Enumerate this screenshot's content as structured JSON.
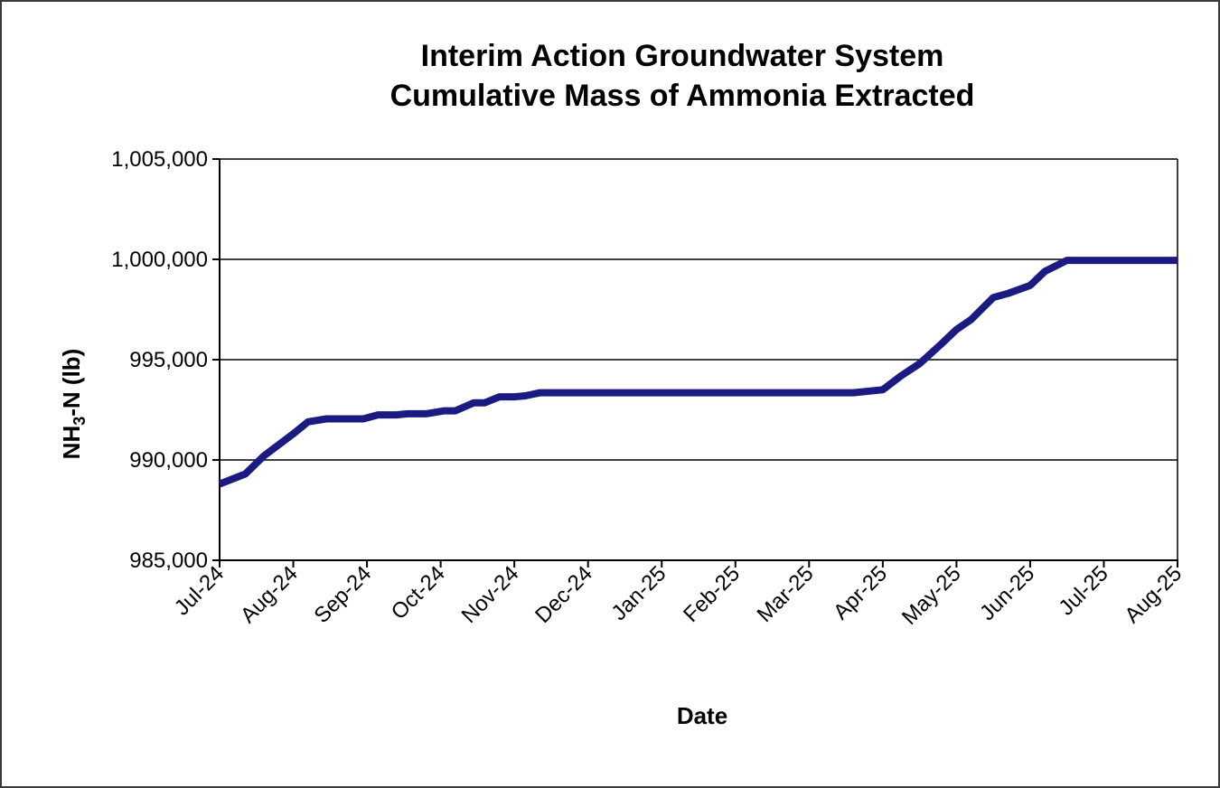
{
  "chart_data": {
    "type": "line",
    "title": "Interim Action Groundwater System",
    "subtitle": "Cumulative Mass of Ammonia Extracted",
    "xlabel": "Date",
    "ylabel_main": "NH",
    "ylabel_sub": "3",
    "ylabel_rest": "-N  (lb)",
    "ylim": [
      985000,
      1005000
    ],
    "yticks": [
      985000,
      990000,
      995000,
      1000000,
      1005000
    ],
    "ytick_labels": [
      "985,000",
      "990,000",
      "995,000",
      "1,000,000",
      "1,005,000"
    ],
    "x_tick_labels": [
      "Jul-24",
      "Aug-24",
      "Sep-24",
      "Oct-24",
      "Nov-24",
      "Dec-24",
      "Jan-25",
      "Feb-25",
      "Mar-25",
      "Apr-25",
      "May-25",
      "Jun-25",
      "Jul-25",
      "Aug-25"
    ],
    "grid": true,
    "line_color": "#1a1a80",
    "series": [
      {
        "x_months": [
          0.0,
          0.35,
          0.6,
          1.0,
          1.2,
          1.45,
          1.7,
          1.95,
          2.15,
          2.4,
          2.55,
          2.8,
          3.05,
          3.2,
          3.45,
          3.6,
          3.8,
          4.0,
          4.15,
          4.35,
          4.55,
          4.75,
          5.0,
          5.5,
          6.0,
          7.0,
          8.0,
          8.6,
          9.0,
          9.25,
          9.5,
          9.8,
          10.0,
          10.2,
          10.5,
          10.7,
          11.0,
          11.2,
          11.5,
          12.0,
          13.0
        ],
        "values": [
          988800,
          989300,
          990200,
          991300,
          991900,
          992050,
          992050,
          992050,
          992250,
          992250,
          992300,
          992300,
          992450,
          992450,
          992850,
          992850,
          993150,
          993150,
          993200,
          993350,
          993350,
          993350,
          993350,
          993350,
          993350,
          993350,
          993350,
          993350,
          993500,
          994200,
          994800,
          995800,
          996500,
          997000,
          998100,
          998300,
          998700,
          999400,
          999950,
          999950,
          999950
        ]
      }
    ]
  }
}
